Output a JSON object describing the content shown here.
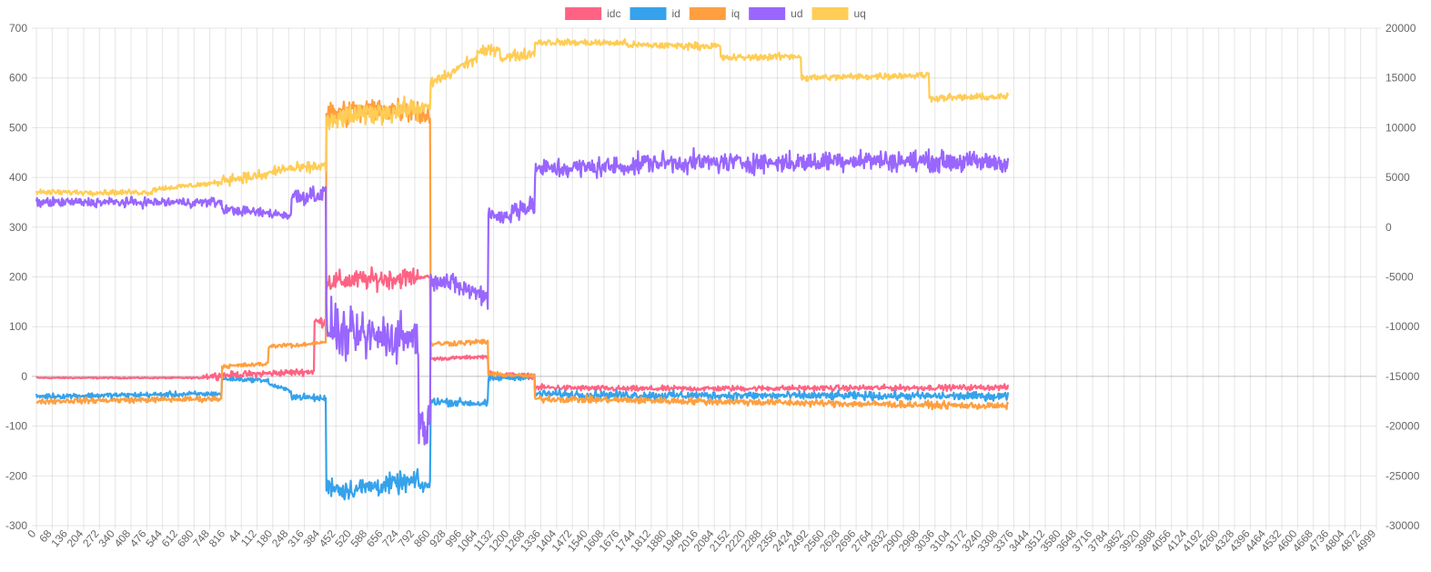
{
  "chart_data": {
    "type": "line",
    "title": "",
    "legend_position": "top-center",
    "grid": true,
    "x_tick_labels": [
      "0",
      "68",
      "136",
      "204",
      "272",
      "340",
      "408",
      "476",
      "544",
      "612",
      "680",
      "748",
      "816",
      "44",
      "112",
      "180",
      "248",
      "316",
      "384",
      "452",
      "520",
      "588",
      "656",
      "724",
      "792",
      "860",
      "928",
      "996",
      "1064",
      "1132",
      "1200",
      "1268",
      "1336",
      "1404",
      "1472",
      "1540",
      "1608",
      "1676",
      "1744",
      "1812",
      "1880",
      "1948",
      "2016",
      "2084",
      "2152",
      "2220",
      "2288",
      "2356",
      "2424",
      "2492",
      "2560",
      "2628",
      "2696",
      "2764",
      "2832",
      "2900",
      "2968",
      "3036",
      "3104",
      "3172",
      "3240",
      "3308",
      "3376",
      "3444",
      "3512",
      "3580",
      "3648",
      "3716",
      "3784",
      "3852",
      "3920",
      "3988",
      "4056",
      "4124",
      "4192",
      "4260",
      "4328",
      "4396",
      "4464",
      "4532",
      "4600",
      "4668",
      "4736",
      "4804",
      "4872",
      "4999"
    ],
    "data_length": 4192,
    "y_left": {
      "min": -300,
      "max": 700,
      "ticks": [
        700,
        600,
        500,
        400,
        300,
        200,
        100,
        0,
        -100,
        -200,
        -300
      ]
    },
    "y_right": {
      "min": -30000,
      "max": 20000,
      "ticks": [
        20000,
        15000,
        10000,
        5000,
        0,
        -5000,
        -10000,
        -15000,
        -20000,
        -25000,
        -30000
      ]
    },
    "series": [
      {
        "name": "idc",
        "color": "#FF6384",
        "axis": "left",
        "noise": 5,
        "segments": [
          [
            0,
            710,
            -3,
            -3
          ],
          [
            710,
            1200,
            0,
            10
          ],
          [
            1200,
            1250,
            110,
            110
          ],
          [
            1250,
            1650,
            190,
            200
          ],
          [
            1650,
            1700,
            200,
            200
          ],
          [
            1700,
            1950,
            35,
            40
          ],
          [
            1950,
            2150,
            5,
            0
          ],
          [
            2150,
            2550,
            -22,
            -25
          ],
          [
            2550,
            4192,
            -25,
            -22
          ]
        ],
        "noise_segments": [
          [
            0,
            710,
            2
          ],
          [
            710,
            1200,
            10
          ],
          [
            1200,
            1250,
            15
          ],
          [
            1250,
            1650,
            30
          ],
          [
            1650,
            1950,
            5
          ],
          [
            1950,
            2150,
            8
          ],
          [
            2150,
            4192,
            8
          ]
        ]
      },
      {
        "name": "id",
        "color": "#36A2EB",
        "axis": "left",
        "segments": [
          [
            0,
            800,
            -40,
            -35
          ],
          [
            800,
            1000,
            -5,
            -8
          ],
          [
            1000,
            1100,
            -15,
            -30
          ],
          [
            1100,
            1250,
            -40,
            -45
          ],
          [
            1250,
            1300,
            -220,
            -220
          ],
          [
            1300,
            1650,
            -230,
            -210
          ],
          [
            1650,
            1700,
            -220,
            -220
          ],
          [
            1700,
            1950,
            -50,
            -55
          ],
          [
            1950,
            2150,
            -5,
            0
          ],
          [
            2150,
            2600,
            -35,
            -38
          ],
          [
            2600,
            4192,
            -38,
            -40
          ]
        ],
        "noise_segments": [
          [
            0,
            800,
            8
          ],
          [
            800,
            1100,
            6
          ],
          [
            1100,
            1250,
            10
          ],
          [
            1250,
            1650,
            30
          ],
          [
            1650,
            1700,
            20
          ],
          [
            1700,
            1950,
            12
          ],
          [
            1950,
            2150,
            8
          ],
          [
            2150,
            4192,
            12
          ]
        ]
      },
      {
        "name": "iq",
        "color": "#FF9F40",
        "axis": "left",
        "segments": [
          [
            0,
            800,
            -50,
            -45
          ],
          [
            800,
            1000,
            20,
            25
          ],
          [
            1000,
            1100,
            60,
            65
          ],
          [
            1100,
            1250,
            60,
            70
          ],
          [
            1250,
            1300,
            525,
            525
          ],
          [
            1300,
            1650,
            530,
            540
          ],
          [
            1650,
            1700,
            525,
            525
          ],
          [
            1700,
            1950,
            65,
            70
          ],
          [
            1950,
            2150,
            5,
            0
          ],
          [
            2150,
            2600,
            -45,
            -48
          ],
          [
            2600,
            4192,
            -48,
            -60
          ]
        ],
        "noise_segments": [
          [
            0,
            800,
            8
          ],
          [
            800,
            1100,
            6
          ],
          [
            1100,
            1250,
            5
          ],
          [
            1250,
            1650,
            40
          ],
          [
            1650,
            1700,
            30
          ],
          [
            1700,
            1950,
            8
          ],
          [
            1950,
            2150,
            6
          ],
          [
            2150,
            4192,
            10
          ]
        ]
      },
      {
        "name": "ud",
        "color": "#9966FF",
        "axis": "right",
        "segments": [
          [
            0,
            800,
            2500,
            2500
          ],
          [
            800,
            1100,
            1800,
            1200
          ],
          [
            1100,
            1250,
            3000,
            3500
          ],
          [
            1250,
            1300,
            -10000,
            -10000
          ],
          [
            1300,
            1650,
            -11000,
            -11000
          ],
          [
            1650,
            1700,
            -20000,
            -20000
          ],
          [
            1700,
            1950,
            -5000,
            -7000
          ],
          [
            1950,
            2050,
            1500,
            800
          ],
          [
            2050,
            2150,
            2000,
            2000
          ],
          [
            2150,
            2600,
            5800,
            6200
          ],
          [
            2600,
            3400,
            6500,
            6500
          ],
          [
            3400,
            4192,
            6800,
            6500
          ]
        ],
        "noise_segments": [
          [
            0,
            800,
            700
          ],
          [
            800,
            1100,
            700
          ],
          [
            1100,
            1250,
            1500
          ],
          [
            1250,
            1650,
            3500
          ],
          [
            1650,
            1700,
            3000
          ],
          [
            1700,
            1950,
            1500
          ],
          [
            1950,
            2150,
            1500
          ],
          [
            2150,
            4192,
            1500
          ]
        ]
      },
      {
        "name": "uq",
        "color": "#FFCD56",
        "axis": "right",
        "segments": [
          [
            0,
            500,
            3500,
            3500
          ],
          [
            500,
            800,
            3800,
            4500
          ],
          [
            800,
            1000,
            4800,
            5200
          ],
          [
            1000,
            1100,
            5500,
            6000
          ],
          [
            1100,
            1250,
            5800,
            6200
          ],
          [
            1250,
            1300,
            10500,
            10500
          ],
          [
            1300,
            1650,
            11000,
            12000
          ],
          [
            1650,
            1700,
            12000,
            12000
          ],
          [
            1700,
            1800,
            14500,
            15500
          ],
          [
            1800,
            1900,
            15800,
            17000
          ],
          [
            1900,
            2000,
            17500,
            18000
          ],
          [
            2000,
            2150,
            17000,
            17500
          ],
          [
            2150,
            2550,
            18600,
            18500
          ],
          [
            2550,
            2950,
            18300,
            18200
          ],
          [
            2950,
            3300,
            17000,
            17200
          ],
          [
            3300,
            3850,
            15000,
            15300
          ],
          [
            3850,
            4192,
            13000,
            13100
          ]
        ],
        "noise_segments": [
          [
            0,
            800,
            400
          ],
          [
            800,
            1250,
            800
          ],
          [
            1250,
            1650,
            1600
          ],
          [
            1650,
            1900,
            800
          ],
          [
            1900,
            2150,
            800
          ],
          [
            2150,
            4192,
            500
          ]
        ]
      }
    ]
  }
}
